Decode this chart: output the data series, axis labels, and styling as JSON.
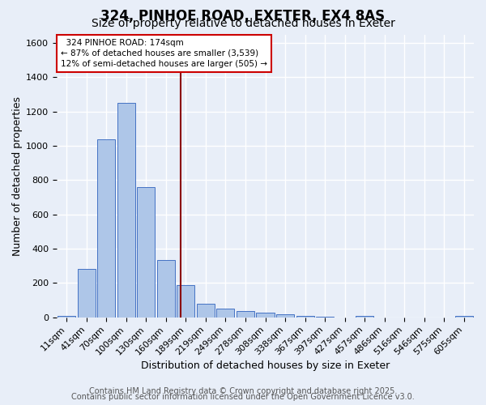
{
  "title1": "324, PINHOE ROAD, EXETER, EX4 8AS",
  "title2": "Size of property relative to detached houses in Exeter",
  "xlabel": "Distribution of detached houses by size in Exeter",
  "ylabel": "Number of detached properties",
  "categories": [
    "11sqm",
    "41sqm",
    "70sqm",
    "100sqm",
    "130sqm",
    "160sqm",
    "189sqm",
    "219sqm",
    "249sqm",
    "278sqm",
    "308sqm",
    "338sqm",
    "367sqm",
    "397sqm",
    "427sqm",
    "457sqm",
    "486sqm",
    "516sqm",
    "546sqm",
    "575sqm",
    "605sqm"
  ],
  "values": [
    10,
    280,
    1040,
    1250,
    760,
    335,
    185,
    80,
    50,
    38,
    25,
    15,
    8,
    2,
    0,
    8,
    0,
    0,
    0,
    0,
    8
  ],
  "bar_color": "#aec6e8",
  "bar_edge_color": "#4472c4",
  "bg_color": "#e8eef8",
  "grid_color": "#ffffff",
  "vline_x": 5.75,
  "vline_color": "#8b0000",
  "annotation_text": "  324 PINHOE ROAD: 174sqm  \n← 87% of detached houses are smaller (3,539)\n12% of semi-detached houses are larger (505) →",
  "annotation_box_color": "#ffffff",
  "annotation_box_edge_color": "#cc0000",
  "ylim": [
    0,
    1650
  ],
  "yticks": [
    0,
    200,
    400,
    600,
    800,
    1000,
    1200,
    1400,
    1600
  ],
  "footer1": "Contains HM Land Registry data © Crown copyright and database right 2025.",
  "footer2": "Contains public sector information licensed under the Open Government Licence v3.0.",
  "title_fontsize": 12,
  "subtitle_fontsize": 10,
  "axis_label_fontsize": 9,
  "tick_fontsize": 8,
  "annotation_fontsize": 7.5,
  "footer_fontsize": 7
}
